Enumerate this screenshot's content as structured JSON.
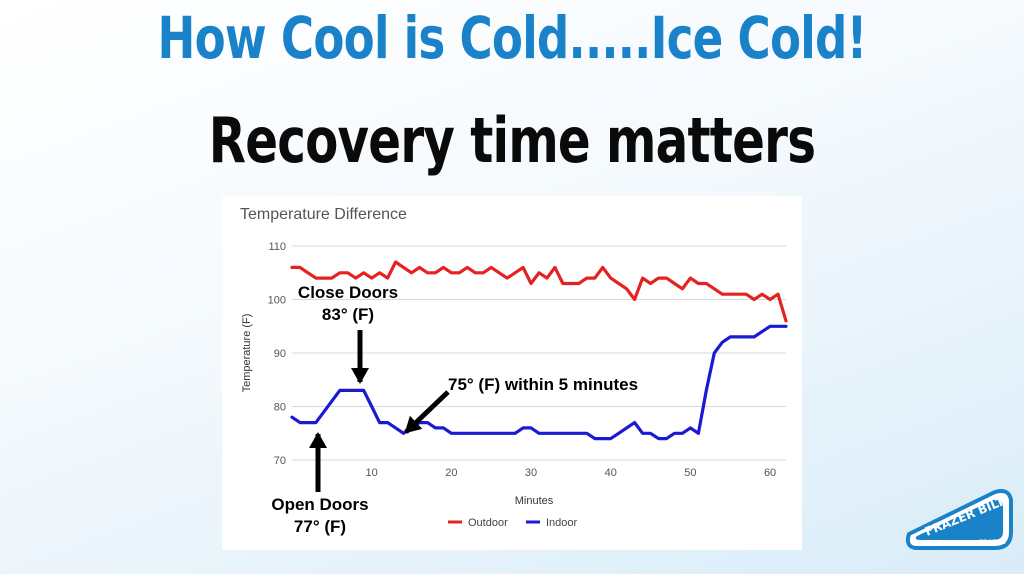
{
  "slide": {
    "title": "How Cool is Cold.....Ice Cold!",
    "subtitle": "Recovery time matters"
  },
  "logo": {
    "text": "FRAZER BILT",
    "subtext": "FRAZER"
  },
  "colors": {
    "title": "#1a82c9",
    "outdoor": "#e52222",
    "indoor": "#1a1ad4",
    "grid": "#d9d9d9"
  },
  "chart_data": {
    "type": "line",
    "title": "Temperature Difference",
    "xlabel": "Minutes",
    "ylabel": "Temperature (F)",
    "xlim": [
      0,
      62
    ],
    "ylim": [
      70,
      110
    ],
    "xticks": [
      10,
      20,
      30,
      40,
      50,
      60
    ],
    "yticks": [
      70,
      80,
      90,
      100,
      110
    ],
    "grid": true,
    "legend": "bottom",
    "series": [
      {
        "name": "Outdoor",
        "color": "#e52222",
        "x": [
          0,
          1,
          2,
          3,
          4,
          5,
          6,
          7,
          8,
          9,
          10,
          11,
          12,
          13,
          14,
          15,
          16,
          17,
          18,
          19,
          20,
          21,
          22,
          23,
          24,
          25,
          26,
          27,
          28,
          29,
          30,
          31,
          32,
          33,
          34,
          35,
          36,
          37,
          38,
          39,
          40,
          41,
          42,
          43,
          44,
          45,
          46,
          47,
          48,
          49,
          50,
          51,
          52,
          53,
          54,
          55,
          56,
          57,
          58,
          59,
          60,
          61,
          62
        ],
        "values": [
          106,
          106,
          105,
          104,
          104,
          104,
          105,
          105,
          104,
          105,
          104,
          105,
          104,
          107,
          106,
          105,
          106,
          105,
          105,
          106,
          105,
          105,
          106,
          105,
          105,
          106,
          105,
          104,
          105,
          106,
          103,
          105,
          104,
          106,
          103,
          103,
          103,
          104,
          104,
          106,
          104,
          103,
          102,
          100,
          104,
          103,
          104,
          104,
          103,
          102,
          104,
          103,
          103,
          102,
          101,
          101,
          101,
          101,
          100,
          101,
          100,
          101,
          96
        ],
        "dash": false
      },
      {
        "name": "Indoor",
        "color": "#1a1ad4",
        "x": [
          0,
          1,
          2,
          3,
          4,
          5,
          6,
          7,
          8,
          9,
          10,
          11,
          12,
          13,
          14,
          15,
          16,
          17,
          18,
          19,
          20,
          21,
          22,
          23,
          24,
          25,
          26,
          27,
          28,
          29,
          30,
          31,
          32,
          33,
          34,
          35,
          36,
          37,
          38,
          39,
          40,
          41,
          42,
          43,
          44,
          45,
          46,
          47,
          48,
          49,
          50,
          51,
          52,
          53,
          54,
          55,
          56,
          57,
          58,
          59,
          60,
          61,
          62
        ],
        "values": [
          78,
          77,
          77,
          77,
          79,
          81,
          83,
          83,
          83,
          83,
          80,
          77,
          77,
          76,
          75,
          76,
          77,
          77,
          76,
          76,
          75,
          75,
          75,
          75,
          75,
          75,
          75,
          75,
          75,
          76,
          76,
          75,
          75,
          75,
          75,
          75,
          75,
          75,
          74,
          74,
          74,
          75,
          76,
          77,
          75,
          75,
          74,
          74,
          75,
          75,
          76,
          75,
          83,
          90,
          92,
          93,
          93,
          93,
          93,
          94,
          95,
          95,
          95
        ]
      }
    ],
    "annotations": [
      {
        "text": "Close Doors",
        "text2": "83° (F)"
      },
      {
        "text": "75° (F) within 5 minutes"
      },
      {
        "text": "Open Doors",
        "text2": "77° (F)"
      }
    ]
  }
}
